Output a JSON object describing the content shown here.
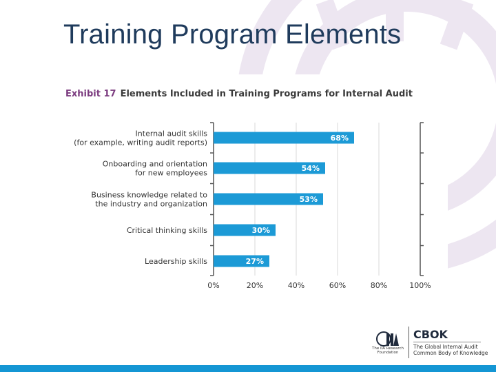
{
  "slide": {
    "title": "Training Program Elements"
  },
  "exhibit": {
    "label": "Exhibit 17",
    "title": "Elements Included in Training Programs for Internal Audit"
  },
  "colors": {
    "bar": "#1c9ad6",
    "title": "#1f3b5c",
    "exhibit_label": "#7b3b7f",
    "bottom_bar": "#1496d4",
    "background_rings": "#ede6f1"
  },
  "chart_data": {
    "type": "bar",
    "orientation": "horizontal",
    "categories": [
      [
        "Internal audit skills",
        "(for example, writing audit reports)"
      ],
      [
        "Onboarding and orientation",
        "for new employees"
      ],
      [
        "Business knowledge related to",
        "the industry and organization"
      ],
      [
        "Critical thinking skills"
      ],
      [
        "Leadership skills"
      ]
    ],
    "values": [
      68,
      54,
      53,
      30,
      27
    ],
    "value_labels": [
      "68%",
      "54%",
      "53%",
      "30%",
      "27%"
    ],
    "x_ticks": [
      "0%",
      "20%",
      "40%",
      "60%",
      "80%",
      "100%"
    ],
    "xlim": [
      0,
      100
    ],
    "grid": true
  },
  "logos": {
    "iia_text": [
      "The IIA Research",
      "Foundation"
    ],
    "cbok_title": "CBOK",
    "cbok_subtitle": [
      "The Global Internal Audit",
      "Common Body of Knowledge"
    ]
  }
}
